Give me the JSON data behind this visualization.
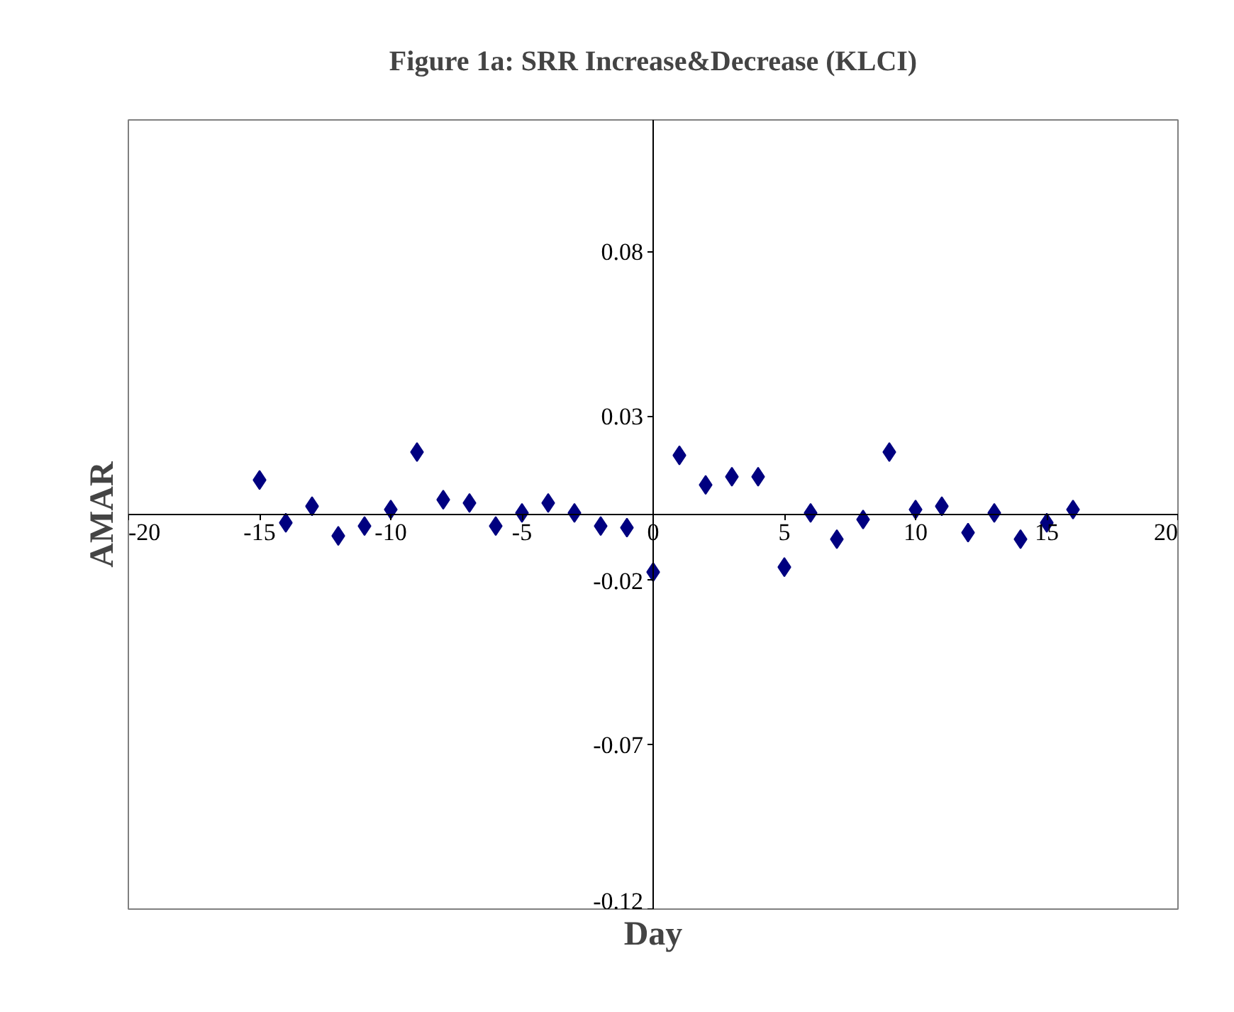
{
  "chart_data": {
    "type": "scatter",
    "title": "Figure 1a: SRR Increase&Decrease (KLCI)",
    "xlabel": "Day",
    "ylabel": "AMAR",
    "x": [
      -15,
      -14,
      -13,
      -12,
      -11,
      -10,
      -9,
      -8,
      -7,
      -6,
      -5,
      -4,
      -3,
      -2,
      -1,
      0,
      1,
      2,
      3,
      4,
      5,
      6,
      7,
      8,
      9,
      10,
      11,
      12,
      13,
      14,
      15,
      16
    ],
    "series": [
      {
        "color": "#000080",
        "values": [
          0.0105,
          -0.0025,
          0.0025,
          -0.0065,
          -0.0035,
          0.0015,
          0.019,
          0.0045,
          0.0035,
          -0.0035,
          0.0005,
          0.0035,
          0.0005,
          -0.0035,
          -0.004,
          -0.0175,
          0.018,
          0.009,
          0.0115,
          0.0115,
          -0.016,
          0.0005,
          -0.0075,
          -0.0015,
          0.019,
          0.0015,
          0.0025,
          -0.0055,
          0.0005,
          -0.0075,
          -0.0025,
          0.0015
        ]
      }
    ],
    "xlim": [
      -20,
      20
    ],
    "xticks": [
      -20,
      -15,
      -10,
      -5,
      0,
      5,
      10,
      15,
      20
    ],
    "ylim": [
      -0.12,
      0.12
    ],
    "yticks": [
      -0.12,
      -0.07,
      -0.02,
      0.03,
      0.08
    ],
    "marker": "diamond",
    "grid": false
  }
}
